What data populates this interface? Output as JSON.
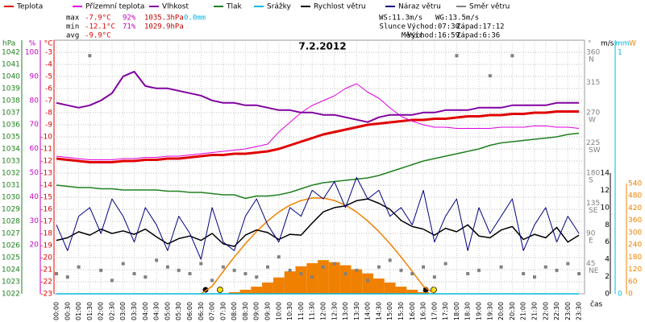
{
  "chart_data": {
    "type": "line",
    "title": "7.2.2012",
    "x_label": "čas",
    "categories": [
      "00:00",
      "00:30",
      "01:00",
      "01:30",
      "02:00",
      "02:30",
      "03:00",
      "03:30",
      "04:00",
      "04:30",
      "05:00",
      "05:30",
      "06:00",
      "06:30",
      "07:00",
      "07:30",
      "08:00",
      "08:30",
      "09:00",
      "09:30",
      "10:00",
      "10:30",
      "11:00",
      "11:30",
      "12:00",
      "12:30",
      "13:00",
      "13:30",
      "14:00",
      "14:30",
      "15:00",
      "15:30",
      "16:00",
      "16:30",
      "17:00",
      "17:30",
      "18:00",
      "18:30",
      "19:00",
      "19:30",
      "20:00",
      "20:30",
      "21:00",
      "21:30",
      "22:00",
      "22:30",
      "23:00",
      "23:30"
    ],
    "grid": true,
    "axes": {
      "hpa": {
        "label": "hPa",
        "color": "#208020",
        "lim": [
          1022,
          1042
        ],
        "ticks": [
          1022,
          1023,
          1024,
          1025,
          1026,
          1027,
          1028,
          1029,
          1030,
          1031,
          1032,
          1033,
          1034,
          1035,
          1036,
          1037,
          1038,
          1039,
          1040,
          1041,
          1042
        ]
      },
      "pct": {
        "label": "%",
        "color": "#c000c0",
        "lim": [
          0,
          100
        ],
        "ticks": [
          20,
          30,
          40,
          50,
          60,
          70,
          80,
          90,
          100
        ]
      },
      "temp": {
        "label": "°C",
        "color": "#e00000",
        "lim": [
          -23,
          -3
        ],
        "ticks": [
          -23,
          -22,
          -21,
          -20,
          -19,
          -18,
          -17,
          -16,
          -15,
          -14,
          -13,
          -12,
          -11,
          -10,
          -9,
          -8,
          -7,
          -6,
          -5,
          -4,
          -3
        ]
      },
      "dir": {
        "label": "°",
        "color": "#808080",
        "lim": [
          0,
          360
        ],
        "ticks": [
          45,
          90,
          135,
          180,
          225,
          270,
          315,
          360
        ],
        "tick_names": [
          "NE",
          "E",
          "SE",
          "S",
          "SW",
          "W",
          null,
          "N"
        ]
      },
      "wind": {
        "label": "m/s",
        "color": "#000000",
        "lim": [
          0,
          14
        ],
        "ticks": [
          0,
          2,
          4,
          6,
          8,
          10,
          12,
          14
        ]
      },
      "rain": {
        "label": "mm",
        "color": "#00b8e0",
        "lim": [
          0,
          1
        ],
        "ticks": [
          0,
          1
        ]
      },
      "solar": {
        "label": "W",
        "color": "#f08000",
        "lim": [
          0,
          540
        ],
        "ticks": [
          0,
          60,
          120,
          180,
          240,
          300,
          360,
          420,
          480,
          540
        ]
      }
    },
    "series": [
      {
        "name": "Teplota",
        "color": "#e00000",
        "axis": "temp",
        "width": 3,
        "values": [
          -11.8,
          -11.9,
          -12.0,
          -12.1,
          -12.1,
          -12.1,
          -12.0,
          -12.0,
          -11.9,
          -11.9,
          -11.8,
          -11.8,
          -11.7,
          -11.6,
          -11.5,
          -11.5,
          -11.4,
          -11.4,
          -11.3,
          -11.2,
          -11.0,
          -10.7,
          -10.4,
          -10.1,
          -9.8,
          -9.6,
          -9.4,
          -9.2,
          -9.0,
          -8.9,
          -8.8,
          -8.7,
          -8.6,
          -8.6,
          -8.5,
          -8.5,
          -8.4,
          -8.3,
          -8.3,
          -8.2,
          -8.2,
          -8.1,
          -8.1,
          -8.0,
          -8.0,
          -7.9,
          -7.9,
          -7.9
        ]
      },
      {
        "name": "Přízemní teplota",
        "color": "#e000e0",
        "axis": "temp",
        "width": 1,
        "values": [
          -11.6,
          -11.7,
          -11.8,
          -11.9,
          -11.9,
          -11.9,
          -11.8,
          -11.8,
          -11.7,
          -11.7,
          -11.6,
          -11.6,
          -11.5,
          -11.4,
          -11.3,
          -11.2,
          -11.1,
          -11.0,
          -10.8,
          -10.6,
          -9.6,
          -8.8,
          -8.0,
          -7.4,
          -7.0,
          -6.6,
          -6.0,
          -5.6,
          -6.3,
          -6.8,
          -7.6,
          -8.3,
          -8.7,
          -9.0,
          -9.2,
          -9.2,
          -9.3,
          -9.3,
          -9.3,
          -9.3,
          -9.2,
          -9.2,
          -9.2,
          -9.1,
          -9.1,
          -9.2,
          -9.2,
          -9.3
        ]
      },
      {
        "name": "Vlhkost",
        "color": "#8000a0",
        "axis": "pct",
        "width": 2,
        "values": [
          79,
          78,
          77,
          78,
          80,
          83,
          90,
          92,
          86,
          85,
          85,
          84,
          83,
          82,
          80,
          79,
          79,
          78,
          78,
          77,
          76,
          76,
          75,
          75,
          74,
          74,
          73,
          72,
          71,
          73,
          74,
          74,
          74,
          75,
          75,
          76,
          76,
          76,
          77,
          77,
          77,
          78,
          78,
          78,
          78,
          79,
          79,
          79
        ]
      },
      {
        "name": "Tlak",
        "color": "#208020",
        "axis": "hpa",
        "width": 1.5,
        "values": [
          1031.0,
          1030.9,
          1030.8,
          1030.8,
          1030.7,
          1030.7,
          1030.6,
          1030.6,
          1030.6,
          1030.6,
          1030.5,
          1030.5,
          1030.4,
          1030.4,
          1030.3,
          1030.2,
          1030.2,
          1029.9,
          1030.1,
          1030.1,
          1030.2,
          1030.4,
          1030.7,
          1031.0,
          1031.2,
          1031.3,
          1031.4,
          1031.5,
          1031.6,
          1031.8,
          1032.1,
          1032.4,
          1032.7,
          1033.0,
          1033.2,
          1033.4,
          1033.6,
          1033.8,
          1034.0,
          1034.3,
          1034.5,
          1034.6,
          1034.7,
          1034.8,
          1034.9,
          1035.0,
          1035.2,
          1035.3
        ]
      },
      {
        "name": "Srážky",
        "color": "#00b8e0",
        "axis": "rain",
        "width": 1.5,
        "values": [
          0,
          0,
          0,
          0,
          0,
          0,
          0,
          0,
          0,
          0,
          0,
          0,
          0,
          0,
          0,
          0,
          0,
          0,
          0,
          0,
          0,
          0,
          0,
          0,
          0,
          0,
          0,
          0,
          0,
          0,
          0,
          0,
          0,
          0,
          0,
          0,
          0,
          0,
          0,
          0,
          0,
          0,
          0,
          0,
          0,
          0,
          0,
          0
        ]
      },
      {
        "name": "Rychlost větru",
        "color": "#000000",
        "axis": "wind",
        "width": 1.5,
        "values": [
          6.2,
          6.5,
          7.2,
          6.8,
          7.5,
          7.0,
          7.3,
          6.9,
          7.5,
          6.6,
          5.8,
          6.4,
          6.7,
          6.2,
          7.0,
          5.8,
          5.5,
          6.8,
          7.4,
          7.1,
          6.3,
          6.9,
          6.8,
          8.2,
          9.5,
          10.0,
          10.2,
          10.8,
          11.0,
          10.5,
          9.8,
          8.5,
          7.8,
          7.5,
          6.8,
          7.6,
          7.2,
          8.0,
          6.7,
          6.5,
          7.4,
          7.8,
          6.3,
          6.9,
          6.5,
          7.7,
          6.0,
          6.8
        ]
      },
      {
        "name": "Náraz větru",
        "color": "#000080",
        "axis": "wind",
        "width": 1,
        "values": [
          8,
          5,
          9,
          10,
          7,
          11,
          9,
          6,
          10,
          8,
          5,
          9,
          7,
          4,
          10,
          6,
          5,
          9,
          11,
          8,
          6,
          10,
          9,
          12,
          11,
          13,
          10,
          13.5,
          11,
          12,
          9,
          10,
          8,
          12,
          6,
          9,
          11,
          5,
          10,
          7,
          9,
          11,
          5,
          8,
          10,
          6,
          9,
          7
        ]
      },
      {
        "name": "Směr větru",
        "color": "#808080",
        "axis": "dir",
        "marker": "square",
        "values": [
          30,
          25,
          40,
          355,
          35,
          20,
          45,
          30,
          25,
          50,
          40,
          35,
          30,
          45,
          20,
          40,
          35,
          30,
          25,
          40,
          55,
          35,
          30,
          25,
          40,
          45,
          30,
          35,
          20,
          40,
          50,
          35,
          30,
          40,
          25,
          45,
          355,
          30,
          35,
          325,
          40,
          355,
          30,
          25,
          40,
          35,
          45,
          30
        ]
      }
    ],
    "solar": {
      "color": "#f08000",
      "axis": "solar",
      "values": [
        0,
        0,
        0,
        0,
        0,
        0,
        0,
        0,
        0,
        0,
        0,
        0,
        0,
        0,
        0,
        2,
        8,
        20,
        35,
        55,
        80,
        110,
        135,
        150,
        165,
        155,
        140,
        120,
        100,
        75,
        55,
        35,
        20,
        8,
        2,
        0,
        0,
        0,
        0,
        0,
        0,
        0,
        0,
        0,
        0,
        0,
        0,
        0
      ]
    },
    "solar_theoretical": {
      "color": "#f08000",
      "axis": "solar",
      "values": [
        null,
        null,
        null,
        null,
        null,
        null,
        null,
        null,
        null,
        null,
        null,
        null,
        null,
        0,
        37,
        110,
        180,
        246,
        305,
        357,
        401,
        434,
        457,
        469,
        469,
        457,
        434,
        401,
        357,
        305,
        246,
        180,
        110,
        37,
        0,
        null,
        null,
        null,
        null,
        null,
        null,
        null,
        null,
        null,
        null,
        null,
        null,
        null
      ]
    },
    "stats": [
      [
        "max",
        "-7.9°C",
        "92%",
        "1035.3hPa",
        "0.0mm"
      ],
      [
        "min",
        "-12.1°C",
        "71%",
        "1029.9hPa"
      ],
      [
        "avg",
        "-9.9°C"
      ]
    ],
    "stats_colors": [
      "#000000",
      "#e00000",
      "#c000c0",
      "#c00000",
      "#00b8e0"
    ],
    "wind_info": [
      "WS:11.3m/s",
      "WG:13.5m/s"
    ],
    "sun": [
      "Slunce",
      "Východ:07:30",
      "Západ:17:12"
    ],
    "moon": [
      "Měsíc",
      "Východ:16:59",
      "Západ:6:36"
    ]
  }
}
